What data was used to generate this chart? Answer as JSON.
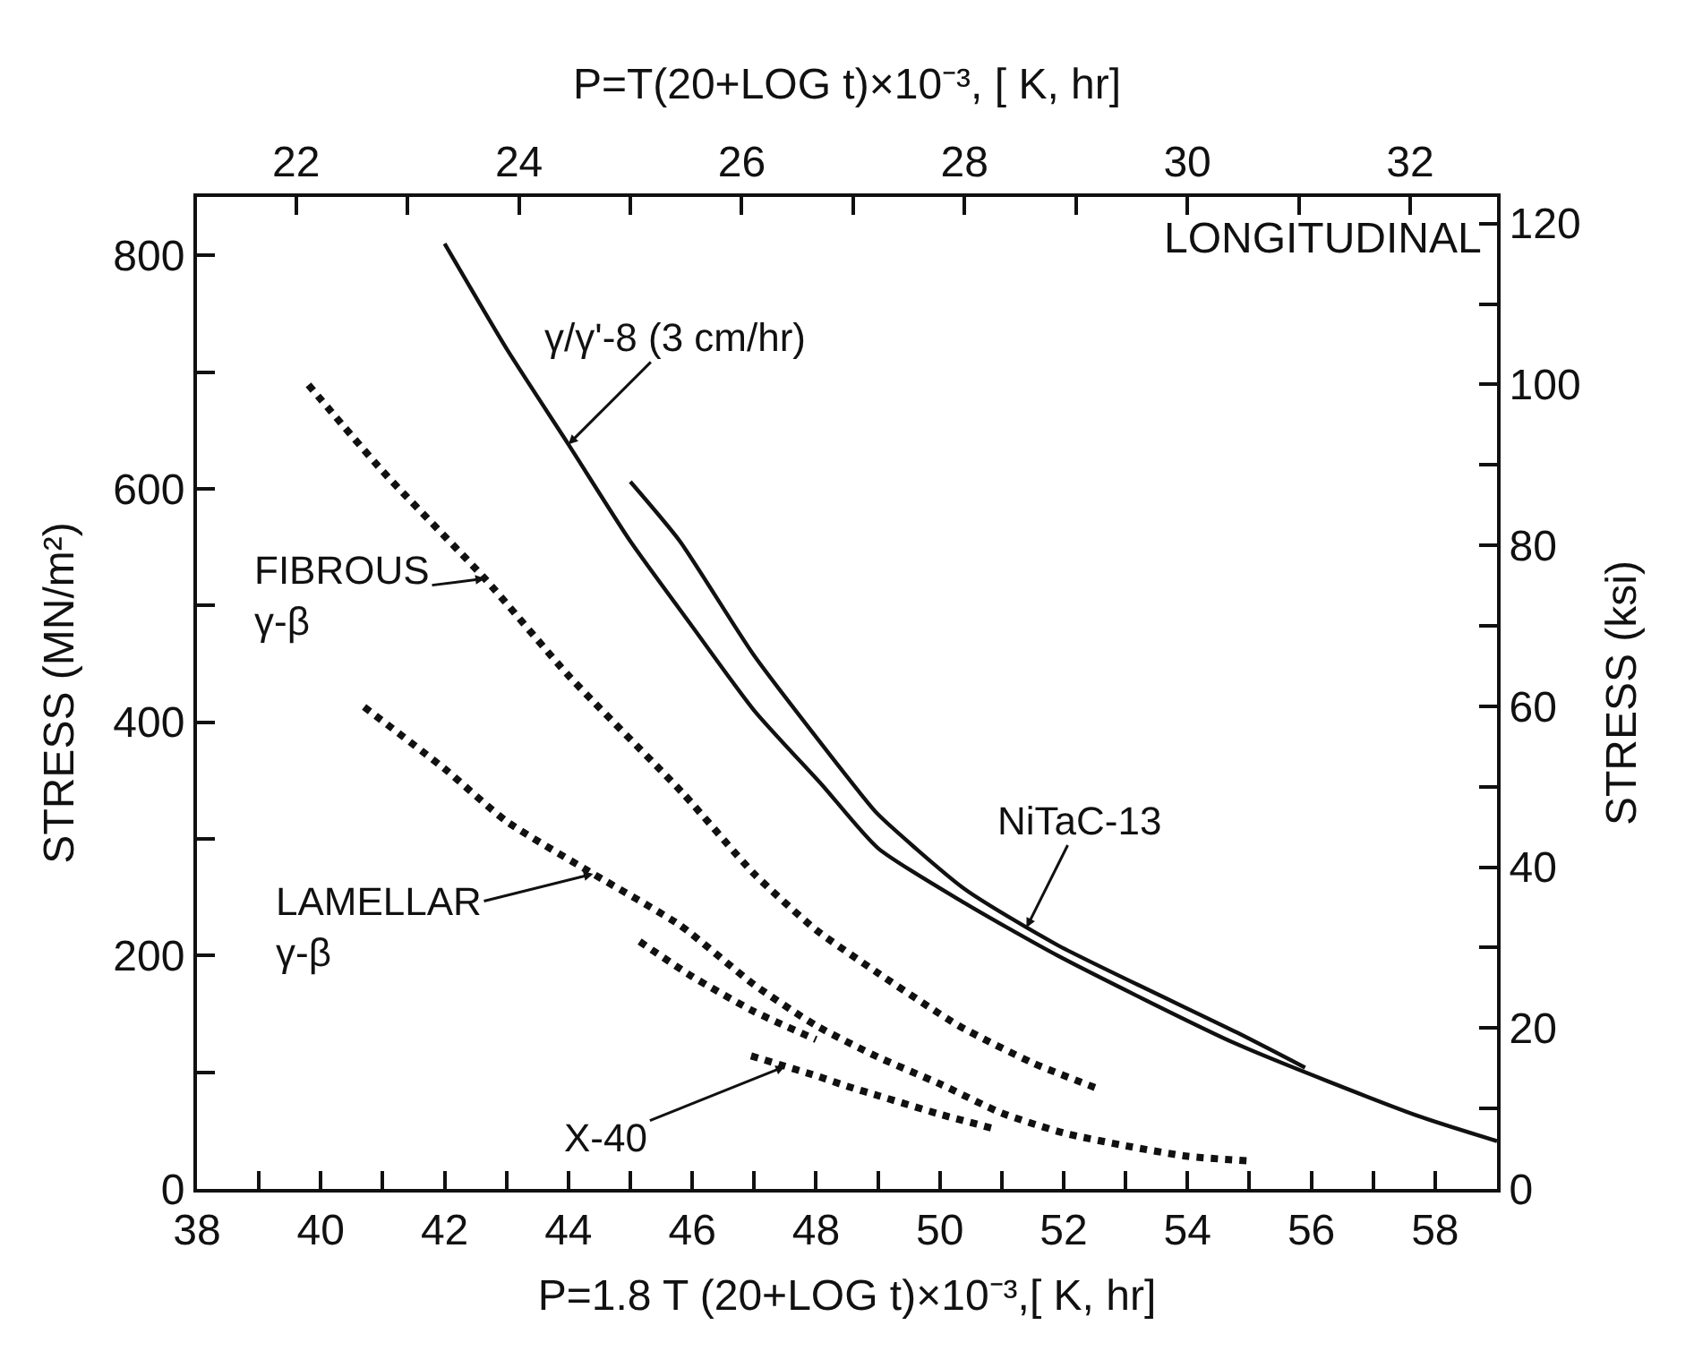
{
  "chart_data": {
    "type": "line",
    "xlabel": "P=1.8 T (20+LOG t)×10⁻³,[ K, hr]",
    "x2label": "P=T(20+LOG t)×10⁻³, [ K, hr]",
    "ylabel": "STRESS (MN/m²)",
    "y2label": "STRESS (ksi)",
    "xlim": [
      38,
      59
    ],
    "xticks": [
      38,
      {
        "value": 39,
        "label": null
      },
      40,
      {
        "value": 41,
        "label": null
      },
      42,
      {
        "value": 43,
        "label": null
      },
      44,
      {
        "value": 45,
        "label": null
      },
      46,
      {
        "value": 47,
        "label": null
      },
      48,
      {
        "value": 49,
        "label": null
      },
      50,
      {
        "value": 51,
        "label": null
      },
      52,
      {
        "value": 53,
        "label": null
      },
      54,
      {
        "value": 55,
        "label": null
      },
      56,
      {
        "value": 57,
        "label": null
      },
      58
    ],
    "x2lim": [
      21.11,
      32.78
    ],
    "x2ticks": [
      22,
      {
        "value": 23,
        "label": null
      },
      24,
      {
        "value": 25,
        "label": null
      },
      26,
      {
        "value": 27,
        "label": null
      },
      28,
      {
        "value": 29,
        "label": null
      },
      30,
      {
        "value": 31,
        "label": null
      },
      32
    ],
    "ylim": [
      0,
      850
    ],
    "yticks": [
      0,
      {
        "value": 100,
        "label": null
      },
      200,
      {
        "value": 300,
        "label": null
      },
      400,
      {
        "value": 500,
        "label": null
      },
      600,
      {
        "value": 700,
        "label": null
      },
      800
    ],
    "y2lim": [
      0,
      123.3
    ],
    "y2ticks": [
      0,
      {
        "value": 10,
        "label": null
      },
      20,
      {
        "value": 30,
        "label": null
      },
      40,
      {
        "value": 50,
        "label": null
      },
      60,
      {
        "value": 70,
        "label": null
      },
      80,
      {
        "value": 90,
        "label": null
      },
      100,
      {
        "value": 110,
        "label": null
      },
      120
    ],
    "marker": "none",
    "series": [
      {
        "color": "#111111",
        "line_style": "solid",
        "x": [
          42,
          43,
          44,
          45,
          46,
          47,
          48.1,
          49,
          50.4,
          51.9,
          54.8,
          57.7,
          59
        ],
        "values": [
          810,
          720,
          638,
          555,
          482,
          410,
          346,
          292,
          245,
          200,
          124,
          63,
          41
        ]
      },
      {
        "color": "#111111",
        "line_style": "solid",
        "x": [
          45,
          45.8,
          47,
          48.7,
          49,
          50.4,
          51.9,
          54.8,
          55.9
        ],
        "values": [
          606,
          555,
          457,
          340,
          321,
          257,
          209,
          134,
          104
        ]
      },
      {
        "color": "#111111",
        "line_style": "dotted",
        "x": [
          39.8,
          41,
          42.65,
          44,
          45.85,
          47,
          48,
          49,
          50.3,
          51.5,
          52.6
        ],
        "values": [
          689,
          615,
          523,
          440,
          339,
          270,
          222,
          185,
          140,
          108,
          85
        ]
      },
      {
        "color": "#111111",
        "line_style": "dotted",
        "x": [
          40.7,
          42,
          43,
          44.4,
          45.8,
          47,
          48,
          49,
          50,
          51,
          52,
          53,
          54,
          55
        ],
        "values": [
          413,
          360,
          315,
          270,
          226,
          175,
          140,
          113,
          90,
          65,
          48,
          37,
          28,
          24
        ]
      },
      {
        "color": "#111111",
        "line_style": "dotted",
        "x": [
          45.15,
          46,
          47,
          48
        ],
        "values": [
          212,
          182,
          152,
          128
        ]
      },
      {
        "color": "#111111",
        "line_style": "dotted",
        "x": [
          46.95,
          48,
          48.5,
          49,
          50,
          50.85
        ],
        "values": [
          114,
          97,
          88,
          80,
          64,
          52
        ]
      }
    ],
    "annotations": [
      "LONGITUDINAL",
      {
        "text": "γ/γ'-8 (3 cm/hr)",
        "x": 44.0,
        "y": 638
      },
      {
        "text": "FIBROUS\nγ-β",
        "x": 42.65,
        "y": 523
      },
      {
        "text": "LAMELLAR\nγ-β",
        "x": 44.4,
        "y": 270
      },
      {
        "text": "NiTaC-13",
        "x": 51.4,
        "y": 224
      },
      {
        "text": "X-40",
        "x": 47.5,
        "y": 105
      }
    ]
  }
}
